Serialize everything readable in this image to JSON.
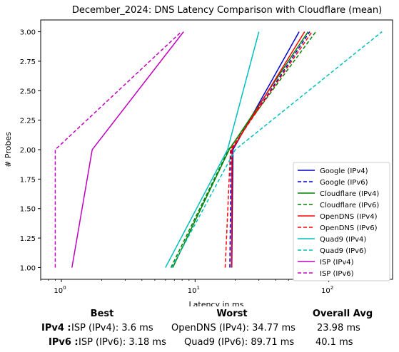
{
  "chart_data": {
    "type": "line",
    "title": "December_2024: DNS Latency Comparison with Cloudflare (mean)",
    "xlabel": "Latency in ms",
    "ylabel": "# Probes",
    "xscale": "log",
    "xlim": [
      0.7,
      300
    ],
    "ylim": [
      0.9,
      3.1
    ],
    "yticks": [
      "1.00",
      "1.25",
      "1.50",
      "1.75",
      "2.00",
      "2.25",
      "2.50",
      "2.75",
      "3.00"
    ],
    "xticks": [
      {
        "base": "10",
        "exp": "0",
        "value": 1
      },
      {
        "base": "10",
        "exp": "1",
        "value": 10
      },
      {
        "base": "10",
        "exp": "2",
        "value": 100
      }
    ],
    "legend_position": "lower-right",
    "grid": false,
    "series": [
      {
        "name": "Google (IPv4)",
        "color": "#0000cc",
        "dash": "solid",
        "points": [
          [
            18.8,
            1
          ],
          [
            19.2,
            2
          ],
          [
            60,
            3
          ]
        ]
      },
      {
        "name": "Google (IPv6)",
        "color": "#0000cc",
        "dash": "dashed",
        "points": [
          [
            18.2,
            1
          ],
          [
            18.6,
            2
          ],
          [
            72,
            3
          ]
        ]
      },
      {
        "name": "Cloudflare (IPv4)",
        "color": "#008000",
        "dash": "solid",
        "points": [
          [
            6.8,
            1
          ],
          [
            18,
            2
          ],
          [
            70,
            3
          ]
        ]
      },
      {
        "name": "Cloudflare (IPv6)",
        "color": "#008000",
        "dash": "dashed",
        "points": [
          [
            6.6,
            1
          ],
          [
            17.8,
            2
          ],
          [
            80,
            3
          ]
        ]
      },
      {
        "name": "OpenDNS (IPv4)",
        "color": "#ff0000",
        "dash": "solid",
        "points": [
          [
            18.7,
            1
          ],
          [
            18.9,
            2
          ],
          [
            66,
            3
          ]
        ]
      },
      {
        "name": "OpenDNS (IPv6)",
        "color": "#ff0000",
        "dash": "dashed",
        "points": [
          [
            16.8,
            1
          ],
          [
            18.4,
            2
          ],
          [
            75,
            3
          ]
        ]
      },
      {
        "name": "Quad9 (IPv4)",
        "color": "#00bfbf",
        "dash": "solid",
        "points": [
          [
            6,
            1
          ],
          [
            17.5,
            2
          ],
          [
            30,
            3
          ]
        ]
      },
      {
        "name": "Quad9 (IPv6)",
        "color": "#00bfbf",
        "dash": "dashed",
        "points": [
          [
            6.7,
            1
          ],
          [
            20,
            2
          ],
          [
            250,
            3
          ]
        ]
      },
      {
        "name": "ISP (IPv4)",
        "color": "#bf00bf",
        "dash": "solid",
        "points": [
          [
            1.2,
            1
          ],
          [
            1.7,
            2
          ],
          [
            8.2,
            3
          ]
        ]
      },
      {
        "name": "ISP (IPv6)",
        "color": "#bf00bf",
        "dash": "dashed",
        "points": [
          [
            0.9,
            1
          ],
          [
            0.9,
            2
          ],
          [
            7.9,
            3
          ]
        ]
      }
    ]
  },
  "stats": {
    "headers": {
      "best": "Best",
      "worst": "Worst",
      "avg": "Overall Avg"
    },
    "rows": [
      {
        "label": "IPv4 :",
        "best": "ISP (IPv4): 3.6 ms",
        "worst": "OpenDNS (IPv4): 34.77 ms",
        "avg": "23.98 ms"
      },
      {
        "label": "IPv6 :",
        "best": "ISP (IPv6): 3.18 ms",
        "worst": "Quad9 (IPv6): 89.71 ms",
        "avg": "40.1 ms"
      }
    ]
  }
}
